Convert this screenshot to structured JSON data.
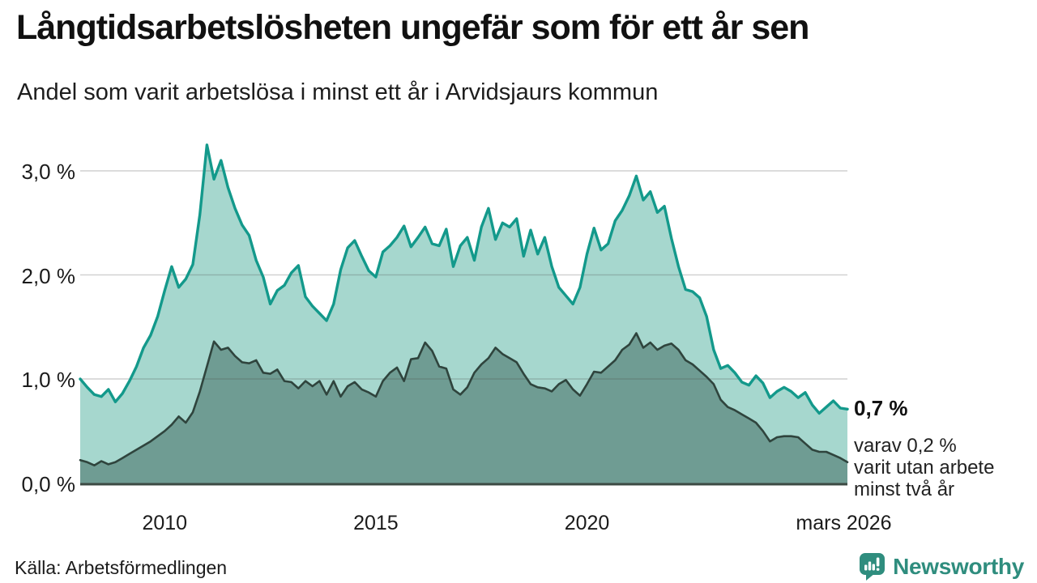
{
  "header": {
    "title": "Långtidsarbetslösheten ungefär som för ett år sen",
    "subtitle": "Andel som varit arbetslösa i minst ett år i Arvidsjaurs kommun"
  },
  "chart_data": {
    "type": "area",
    "title": "Långtidsarbetslösheten ungefär som för ett år sen",
    "subtitle": "Andel som varit arbetslösa i minst ett år i Arvidsjaurs kommun",
    "unit": "%",
    "x_start_year": 2008,
    "x_step_months": 2,
    "ylim": [
      0,
      3.4
    ],
    "grid": "horizontal",
    "legend": "none",
    "yticks": [
      {
        "value": 3,
        "label": "3,0 %"
      },
      {
        "value": 2,
        "label": "2,0 %"
      },
      {
        "value": 1,
        "label": "1,0 %"
      },
      {
        "value": 0,
        "label": "0,0 %"
      }
    ],
    "xticks": [
      {
        "year": 2010,
        "label": "2010"
      },
      {
        "year": 2015,
        "label": "2015"
      },
      {
        "year": 2020,
        "label": "2020"
      },
      {
        "year": 2026.08,
        "label": "mars 2026"
      }
    ],
    "series": [
      {
        "name": "Arbetslösa minst ett år",
        "color": "#13998b",
        "fill": "#a6d7ce",
        "latest_label": "0,7 %",
        "values": [
          1.0,
          0.92,
          0.85,
          0.83,
          0.9,
          0.78,
          0.86,
          0.98,
          1.12,
          1.3,
          1.42,
          1.6,
          1.85,
          2.08,
          1.88,
          1.96,
          2.1,
          2.58,
          3.25,
          2.92,
          3.1,
          2.84,
          2.64,
          2.48,
          2.38,
          2.14,
          1.98,
          1.72,
          1.85,
          1.9,
          2.02,
          2.09,
          1.79,
          1.7,
          1.63,
          1.56,
          1.72,
          2.05,
          2.26,
          2.33,
          2.18,
          2.04,
          1.98,
          2.22,
          2.28,
          2.36,
          2.47,
          2.27,
          2.36,
          2.46,
          2.3,
          2.28,
          2.44,
          2.08,
          2.28,
          2.36,
          2.14,
          2.46,
          2.64,
          2.34,
          2.5,
          2.46,
          2.54,
          2.18,
          2.43,
          2.2,
          2.36,
          2.08,
          1.88,
          1.8,
          1.72,
          1.88,
          2.2,
          2.45,
          2.24,
          2.3,
          2.52,
          2.62,
          2.76,
          2.95,
          2.72,
          2.8,
          2.6,
          2.66,
          2.35,
          2.08,
          1.86,
          1.84,
          1.78,
          1.6,
          1.28,
          1.1,
          1.13,
          1.06,
          0.97,
          0.94,
          1.03,
          0.96,
          0.82,
          0.88,
          0.92,
          0.88,
          0.82,
          0.87,
          0.75,
          0.67,
          0.73,
          0.79,
          0.72,
          0.71
        ]
      },
      {
        "name": "Varit utan arbete minst två år",
        "color": "#2f443d",
        "fill": "#6f9c93",
        "latest_label": "0,2 %",
        "values": [
          0.22,
          0.2,
          0.17,
          0.21,
          0.18,
          0.2,
          0.24,
          0.28,
          0.32,
          0.36,
          0.4,
          0.45,
          0.5,
          0.56,
          0.64,
          0.58,
          0.68,
          0.88,
          1.12,
          1.36,
          1.28,
          1.3,
          1.22,
          1.16,
          1.15,
          1.18,
          1.06,
          1.05,
          1.09,
          0.98,
          0.97,
          0.91,
          0.98,
          0.93,
          0.98,
          0.85,
          0.98,
          0.83,
          0.93,
          0.97,
          0.9,
          0.87,
          0.83,
          0.98,
          1.06,
          1.11,
          0.98,
          1.19,
          1.2,
          1.35,
          1.27,
          1.12,
          1.1,
          0.9,
          0.85,
          0.92,
          1.06,
          1.14,
          1.2,
          1.3,
          1.24,
          1.2,
          1.16,
          1.05,
          0.95,
          0.92,
          0.91,
          0.88,
          0.95,
          0.99,
          0.9,
          0.84,
          0.95,
          1.07,
          1.06,
          1.12,
          1.18,
          1.28,
          1.33,
          1.44,
          1.3,
          1.35,
          1.28,
          1.32,
          1.34,
          1.28,
          1.18,
          1.14,
          1.08,
          1.02,
          0.95,
          0.8,
          0.73,
          0.7,
          0.66,
          0.62,
          0.58,
          0.5,
          0.4,
          0.44,
          0.45,
          0.45,
          0.44,
          0.38,
          0.32,
          0.3,
          0.3,
          0.27,
          0.24,
          0.2
        ]
      }
    ],
    "annotations": {
      "latest_value": "0,7 %",
      "note_lines": [
        "varav 0,2 %",
        "varit utan arbete",
        "minst två år"
      ]
    }
  },
  "footer": {
    "source": "Källa: Arbetsförmedlingen",
    "brand": "Newsworthy",
    "brand_color": "#2f8d7e"
  }
}
